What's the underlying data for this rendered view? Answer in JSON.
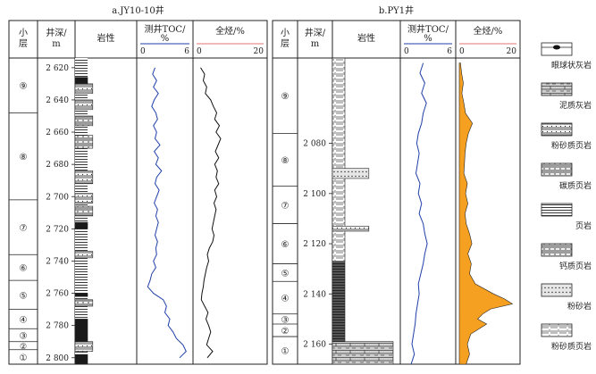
{
  "chart_data": [
    {
      "type": "line",
      "title": "a.JY10-10井",
      "columns": [
        "小层",
        "井深/m",
        "岩性",
        "测井TOC/%",
        "全烃/%"
      ],
      "depth_ticks": [
        2620,
        2640,
        2660,
        2680,
        2700,
        2720,
        2740,
        2760,
        2780,
        2800
      ],
      "depth_tick_labels": [
        "2 620",
        "2 640",
        "2 660",
        "2 680",
        "2 700",
        "2 720",
        "2 740",
        "2 760",
        "2 780",
        "2 800"
      ],
      "depth_range": [
        2614,
        2804
      ],
      "layers": [
        {
          "label": "⑨",
          "top": 2614,
          "bottom": 2648
        },
        {
          "label": "⑧",
          "top": 2648,
          "bottom": 2702
        },
        {
          "label": "⑦",
          "top": 2702,
          "bottom": 2736
        },
        {
          "label": "⑥",
          "top": 2736,
          "bottom": 2752
        },
        {
          "label": "⑤",
          "top": 2752,
          "bottom": 2770
        },
        {
          "label": "④",
          "top": 2770,
          "bottom": 2782
        },
        {
          "label": "③",
          "top": 2782,
          "bottom": 2790
        },
        {
          "label": "②",
          "top": 2790,
          "bottom": 2795
        },
        {
          "label": "①",
          "top": 2795,
          "bottom": 2804
        }
      ],
      "toc": {
        "name": "测井TOC/%",
        "range": [
          0,
          6
        ],
        "tick_labels": [
          "0",
          "6"
        ],
        "color": "#1f3fa8",
        "depth": [
          2620,
          2624,
          2628,
          2632,
          2636,
          2640,
          2644,
          2648,
          2652,
          2656,
          2660,
          2664,
          2668,
          2672,
          2676,
          2680,
          2684,
          2688,
          2692,
          2696,
          2700,
          2704,
          2708,
          2712,
          2716,
          2720,
          2724,
          2728,
          2732,
          2736,
          2740,
          2744,
          2748,
          2752,
          2756,
          2760,
          2764,
          2768,
          2772,
          2776,
          2780,
          2784,
          2788,
          2792,
          2796,
          2800
        ],
        "values": [
          1.8,
          1.5,
          2.0,
          1.6,
          2.2,
          1.7,
          1.4,
          1.9,
          2.1,
          1.6,
          2.0,
          1.8,
          2.4,
          1.7,
          2.2,
          1.9,
          2.6,
          2.0,
          1.8,
          2.3,
          2.0,
          1.7,
          2.1,
          1.9,
          2.2,
          2.0,
          1.8,
          2.1,
          1.9,
          2.0,
          1.6,
          1.9,
          1.4,
          1.2,
          0.9,
          1.6,
          2.8,
          3.2,
          3.0,
          3.6,
          3.4,
          4.0,
          4.4,
          5.2,
          5.6,
          4.8
        ]
      },
      "hc": {
        "name": "全烃/%",
        "range": [
          0,
          20
        ],
        "tick_labels": [
          "0",
          "20"
        ],
        "color": "#e57373",
        "depth": [
          2620,
          2624,
          2628,
          2632,
          2636,
          2640,
          2644,
          2648,
          2652,
          2656,
          2660,
          2664,
          2668,
          2672,
          2676,
          2680,
          2684,
          2688,
          2692,
          2696,
          2700,
          2704,
          2708,
          2712,
          2716,
          2720,
          2724,
          2728,
          2732,
          2736,
          2740,
          2744,
          2748,
          2752,
          2756,
          2760,
          2764,
          2768,
          2772,
          2776,
          2780,
          2784,
          2788,
          2792,
          2796,
          2800
        ],
        "values": [
          1.2,
          2.4,
          2.0,
          3.0,
          2.6,
          4.2,
          5.0,
          6.0,
          5.4,
          6.8,
          5.8,
          7.2,
          6.4,
          5.6,
          6.6,
          5.4,
          6.2,
          5.8,
          6.6,
          5.4,
          6.0,
          5.2,
          5.8,
          5.4,
          5.0,
          4.6,
          5.2,
          4.8,
          3.8,
          3.2,
          3.6,
          3.0,
          2.6,
          2.2,
          2.0,
          1.6,
          1.4,
          2.4,
          3.4,
          2.8,
          3.6,
          4.2,
          3.6,
          3.0,
          4.8,
          3.2
        ]
      },
      "lithology": [
        {
          "top": 2626,
          "bottom": 2630,
          "pattern": "shale-black"
        },
        {
          "top": 2630,
          "bottom": 2636,
          "pattern": "silty-shale"
        },
        {
          "top": 2640,
          "bottom": 2646,
          "pattern": "silty-shale"
        },
        {
          "top": 2650,
          "bottom": 2656,
          "pattern": "calc-shale"
        },
        {
          "top": 2662,
          "bottom": 2670,
          "pattern": "calc-shale"
        },
        {
          "top": 2684,
          "bottom": 2692,
          "pattern": "silty-shale"
        },
        {
          "top": 2698,
          "bottom": 2704,
          "pattern": "silty-shale"
        },
        {
          "top": 2706,
          "bottom": 2712,
          "pattern": "calc-shale"
        },
        {
          "top": 2716,
          "bottom": 2720,
          "pattern": "shale-black"
        },
        {
          "top": 2734,
          "bottom": 2738,
          "pattern": "silty-shale"
        },
        {
          "top": 2760,
          "bottom": 2762,
          "pattern": "shale-black"
        },
        {
          "top": 2764,
          "bottom": 2768,
          "pattern": "calc-shale"
        },
        {
          "top": 2776,
          "bottom": 2790,
          "pattern": "shale-black"
        },
        {
          "top": 2790,
          "bottom": 2796,
          "pattern": "silty-shale"
        },
        {
          "top": 2798,
          "bottom": 2804,
          "pattern": "augen-limestone"
        }
      ]
    },
    {
      "type": "line",
      "title": "b.PY1井",
      "columns": [
        "小层",
        "井深/m",
        "岩性",
        "测井TOC/%",
        "全烃/%"
      ],
      "depth_ticks": [
        2080,
        2100,
        2120,
        2140,
        2160
      ],
      "depth_tick_labels": [
        "2 080",
        "2 100",
        "2 120",
        "2 140",
        "2 160"
      ],
      "depth_range": [
        2046,
        2168
      ],
      "layers": [
        {
          "label": "⑨",
          "top": 2046,
          "bottom": 2076
        },
        {
          "label": "⑧",
          "top": 2076,
          "bottom": 2097
        },
        {
          "label": "⑦",
          "top": 2097,
          "bottom": 2112
        },
        {
          "label": "⑥",
          "top": 2112,
          "bottom": 2128
        },
        {
          "label": "⑤",
          "top": 2128,
          "bottom": 2135
        },
        {
          "label": "④",
          "top": 2135,
          "bottom": 2148
        },
        {
          "label": "③",
          "top": 2148,
          "bottom": 2152
        },
        {
          "label": "②",
          "top": 2152,
          "bottom": 2157
        },
        {
          "label": "①",
          "top": 2157,
          "bottom": 2168
        }
      ],
      "toc": {
        "name": "测井TOC/%",
        "range": [
          0,
          6
        ],
        "tick_labels": [
          "0",
          "6"
        ],
        "color": "#1f3fa8",
        "depth": [
          2048,
          2052,
          2056,
          2060,
          2064,
          2068,
          2072,
          2076,
          2080,
          2084,
          2088,
          2092,
          2096,
          2100,
          2104,
          2108,
          2112,
          2116,
          2120,
          2124,
          2128,
          2132,
          2136,
          2140,
          2144,
          2148,
          2152,
          2156,
          2160,
          2164,
          2168
        ],
        "values": [
          2.4,
          2.0,
          2.6,
          2.2,
          2.8,
          2.4,
          2.2,
          1.8,
          1.6,
          1.9,
          1.7,
          1.5,
          2.0,
          1.8,
          2.2,
          1.9,
          2.4,
          2.6,
          2.9,
          2.6,
          2.4,
          2.1,
          1.8,
          1.9,
          1.7,
          1.5,
          1.4,
          1.2,
          1.0,
          1.3,
          0.9
        ]
      },
      "hc": {
        "name": "全烃/%",
        "range": [
          0,
          20
        ],
        "tick_labels": [
          "0",
          "20"
        ],
        "color": "#e57373",
        "fill": "#f5a020",
        "depth": [
          2048,
          2052,
          2056,
          2060,
          2064,
          2068,
          2072,
          2076,
          2080,
          2084,
          2088,
          2092,
          2096,
          2100,
          2104,
          2108,
          2112,
          2116,
          2120,
          2124,
          2128,
          2132,
          2136,
          2140,
          2142,
          2144,
          2146,
          2148,
          2150,
          2152,
          2156,
          2160,
          2164,
          2168
        ],
        "values": [
          0.4,
          0.8,
          1.4,
          0.9,
          1.6,
          2.2,
          4.6,
          3.2,
          2.4,
          2.0,
          1.8,
          1.6,
          2.8,
          2.2,
          3.0,
          2.0,
          2.4,
          3.6,
          4.4,
          3.0,
          4.2,
          3.6,
          5.6,
          12.0,
          15.8,
          18.6,
          11.0,
          8.2,
          6.4,
          9.6,
          4.0,
          2.8,
          3.6,
          2.4
        ]
      },
      "lithology": [
        {
          "top": 2046,
          "bottom": 2127,
          "pattern": "silty-shale-light"
        },
        {
          "top": 2090,
          "bottom": 2094,
          "pattern": "siltstone-box"
        },
        {
          "top": 2113,
          "bottom": 2115,
          "pattern": "silty-shale"
        },
        {
          "top": 2127,
          "bottom": 2159,
          "pattern": "shale-dark"
        },
        {
          "top": 2159,
          "bottom": 2168,
          "pattern": "calc-mud-box"
        }
      ]
    }
  ],
  "legend": [
    {
      "key": "augen-limestone",
      "label": "眼球状灰岩"
    },
    {
      "key": "calc-mud",
      "label": "泥质灰岩"
    },
    {
      "key": "silty-shale",
      "label": "粉砂质页岩"
    },
    {
      "key": "carbon-shale",
      "label": "碳质页岩"
    },
    {
      "key": "shale",
      "label": "页岩"
    },
    {
      "key": "calc-shale",
      "label": "钙质页岩"
    },
    {
      "key": "siltstone",
      "label": "粉砂岩"
    },
    {
      "key": "silty-shale2",
      "label": "粉砂质页岩"
    }
  ]
}
